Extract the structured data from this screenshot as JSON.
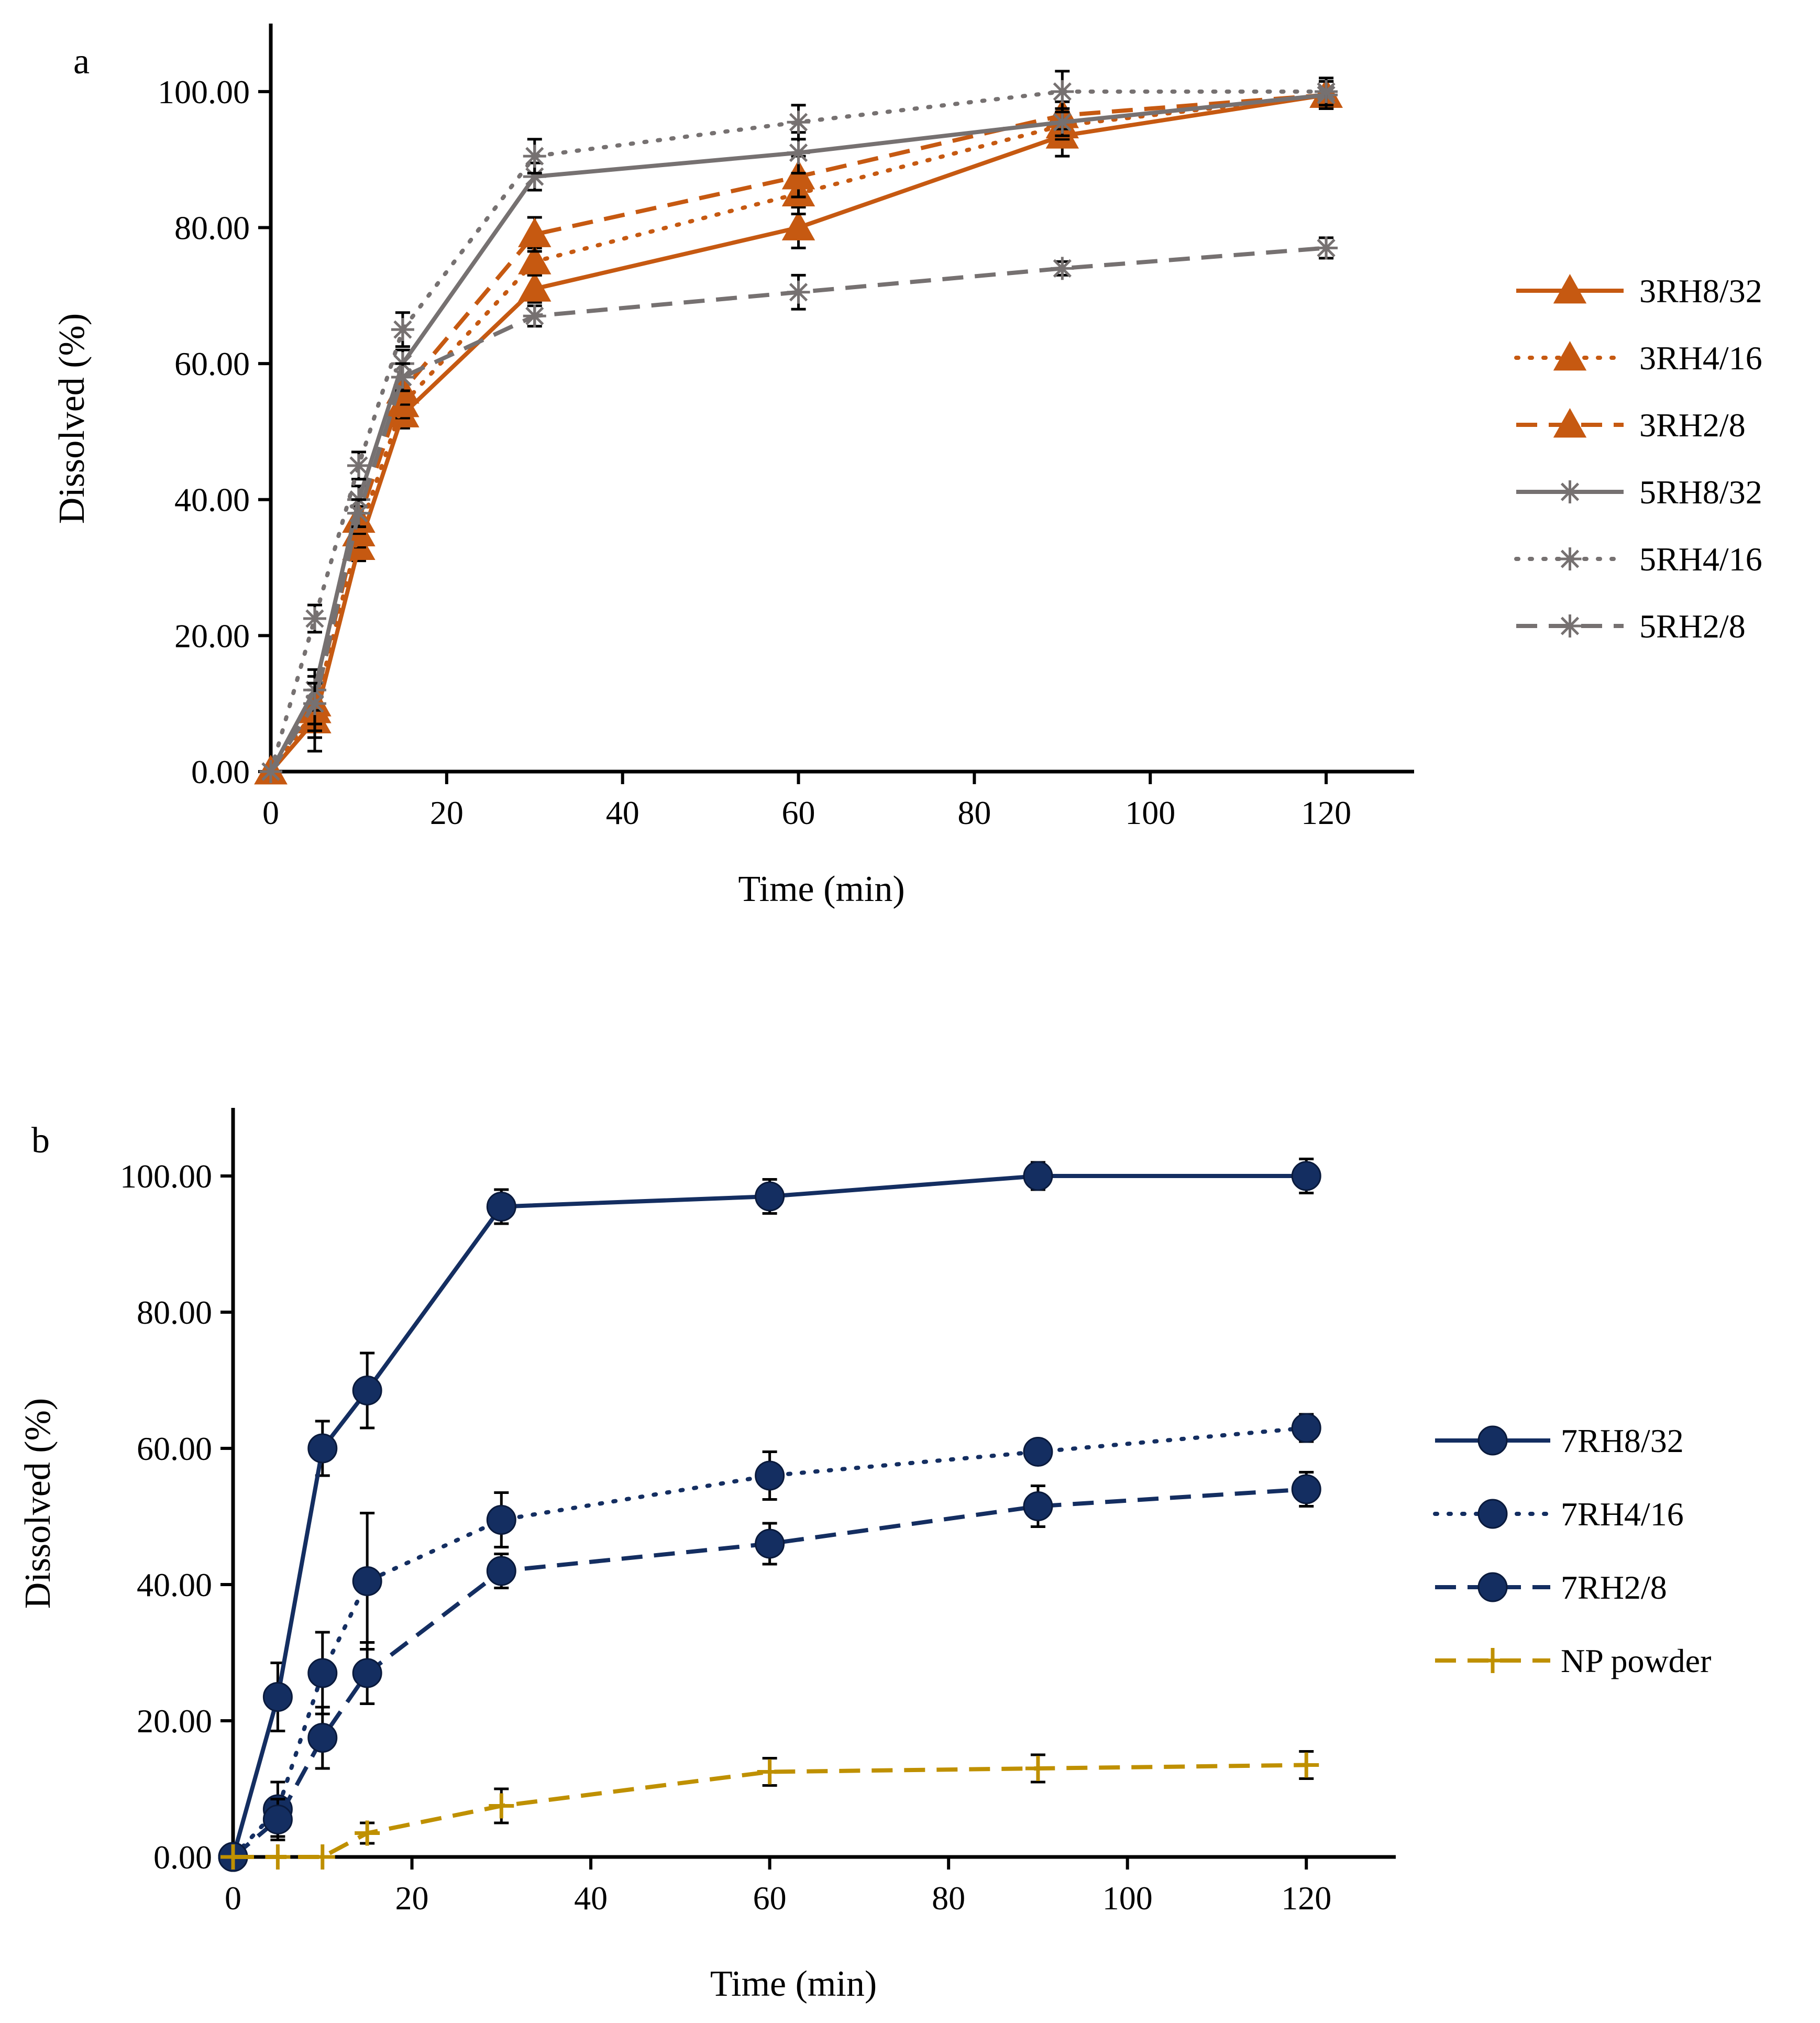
{
  "chart_data": [
    {
      "panel": "a",
      "type": "line",
      "xlabel": "Time (min)",
      "ylabel": "Dissolved (%)",
      "xlim": [
        0,
        130
      ],
      "ylim": [
        0,
        110
      ],
      "xticks": [
        0,
        20,
        40,
        60,
        80,
        100,
        120
      ],
      "xtick_labels": [
        "0",
        "20",
        "40",
        "60",
        "80",
        "100",
        "120"
      ],
      "yticks": [
        0,
        20,
        40,
        60,
        80,
        100
      ],
      "ytick_labels": [
        "0.00",
        "20.00",
        "40.00",
        "60.00",
        "80.00",
        "100.00"
      ],
      "legend_position": "right",
      "x": [
        0,
        5,
        10,
        15,
        30,
        60,
        90,
        120
      ],
      "series": [
        {
          "name": "3RH8/32",
          "color": "#C65911",
          "dash": "solid",
          "marker": "triangle",
          "values": [
            0,
            7.5,
            33,
            52.5,
            71,
            80,
            93.5,
            99.5
          ],
          "errors": [
            0,
            4.5,
            2,
            2,
            2,
            3,
            3,
            2
          ]
        },
        {
          "name": "3RH4/16",
          "color": "#C65911",
          "dash": "dotted",
          "marker": "triangle",
          "values": [
            0,
            9,
            35,
            54,
            75,
            85,
            95,
            99.5
          ],
          "errors": [
            0,
            4,
            2,
            2,
            2,
            3,
            2,
            2
          ]
        },
        {
          "name": "3RH2/8",
          "color": "#C65911",
          "dash": "dashed",
          "marker": "triangle",
          "values": [
            0,
            10,
            37,
            56,
            79,
            87.5,
            96.5,
            99.5
          ],
          "errors": [
            0,
            4,
            2,
            2,
            2.5,
            3,
            2,
            2
          ]
        },
        {
          "name": "5RH8/32",
          "color": "#767171",
          "dash": "solid",
          "marker": "star",
          "values": [
            0,
            12,
            40,
            60,
            87.5,
            91,
            95.5,
            99.5
          ],
          "errors": [
            0,
            3,
            2,
            2,
            2,
            3,
            2,
            2
          ]
        },
        {
          "name": "5RH4/16",
          "color": "#767171",
          "dash": "dotted",
          "marker": "star",
          "values": [
            0,
            22.5,
            45,
            65,
            90.5,
            95.5,
            100,
            100
          ],
          "errors": [
            0,
            2,
            2,
            2.5,
            2.5,
            2.5,
            3,
            2
          ]
        },
        {
          "name": "5RH2/8",
          "color": "#767171",
          "dash": "dashed",
          "marker": "star",
          "values": [
            0,
            10,
            38,
            58,
            67,
            70.5,
            74,
            77
          ],
          "errors": [
            0,
            3,
            2,
            2,
            1.5,
            2.5,
            1,
            1.5
          ]
        }
      ]
    },
    {
      "panel": "b",
      "type": "line",
      "xlabel": "Time (min)",
      "ylabel": "Dissolved (%)",
      "xlim": [
        0,
        130
      ],
      "ylim": [
        0,
        110
      ],
      "xticks": [
        0,
        20,
        40,
        60,
        80,
        100,
        120
      ],
      "xtick_labels": [
        "0",
        "20",
        "40",
        "60",
        "80",
        "100",
        "120"
      ],
      "yticks": [
        0,
        20,
        40,
        60,
        80,
        100
      ],
      "ytick_labels": [
        "0.00",
        "20.00",
        "40.00",
        "60.00",
        "80.00",
        "100.00"
      ],
      "legend_position": "right",
      "x": [
        0,
        5,
        10,
        15,
        30,
        60,
        90,
        120
      ],
      "series": [
        {
          "name": "7RH8/32",
          "color": "#142E61",
          "dash": "solid",
          "marker": "circle",
          "values": [
            0,
            23.5,
            60,
            68.5,
            95.5,
            97,
            100,
            100
          ],
          "errors": [
            0,
            5,
            4,
            5.5,
            2.5,
            2.5,
            2,
            2.5
          ]
        },
        {
          "name": "7RH4/16",
          "color": "#142E61",
          "dash": "dotted",
          "marker": "circle",
          "values": [
            0,
            7,
            27,
            40.5,
            49.5,
            56,
            59.5,
            63
          ],
          "errors": [
            0,
            4,
            6,
            10,
            4,
            3.5,
            1.5,
            2
          ]
        },
        {
          "name": "7RH2/8",
          "color": "#142E61",
          "dash": "dashed",
          "marker": "circle",
          "values": [
            0,
            5.5,
            17.5,
            27,
            42,
            46,
            51.5,
            54
          ],
          "errors": [
            0,
            3,
            4.5,
            4.5,
            2.5,
            3,
            3,
            2.5
          ]
        },
        {
          "name": "NP powder",
          "color": "#BF9000",
          "dash": "dashed",
          "marker": "plus",
          "values": [
            0,
            0,
            0,
            3.5,
            7.5,
            12.5,
            13,
            13.5
          ],
          "errors": [
            0,
            0,
            0,
            1.5,
            2.5,
            2,
            2,
            2
          ]
        }
      ]
    }
  ]
}
